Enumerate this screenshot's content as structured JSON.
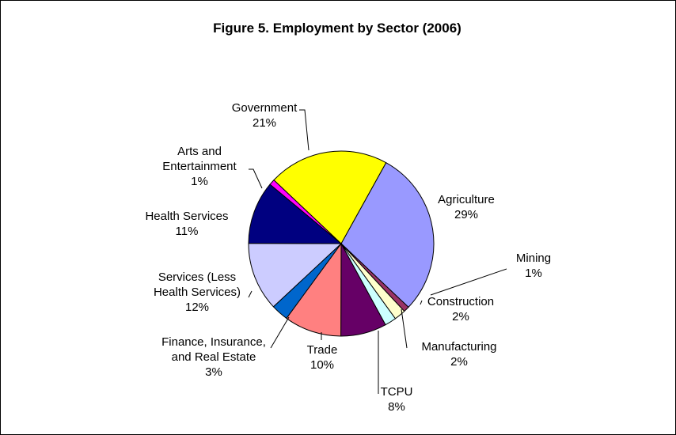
{
  "chart_data": {
    "type": "pie",
    "title": "Figure 5. Employment by Sector (2006)",
    "slices": [
      {
        "label": "Agriculture",
        "value": 29,
        "pct_label": "29%",
        "color": "#9999FF"
      },
      {
        "label": "Mining",
        "value": 1,
        "pct_label": "1%",
        "color": "#993366"
      },
      {
        "label": "Construction",
        "value": 2,
        "pct_label": "2%",
        "color": "#FFFFCC"
      },
      {
        "label": "Manufacturing",
        "value": 2,
        "pct_label": "2%",
        "color": "#CCFFFF"
      },
      {
        "label": "TCPU",
        "value": 8,
        "pct_label": "8%",
        "color": "#660066"
      },
      {
        "label": "Trade",
        "value": 10,
        "pct_label": "10%",
        "color": "#FF8080"
      },
      {
        "label": "Finance, Insurance, and Real Estate",
        "value": 3,
        "pct_label": "3%",
        "color": "#0066CC"
      },
      {
        "label": "Services (Less Health Services)",
        "value": 12,
        "pct_label": "12%",
        "color": "#CCCCFF"
      },
      {
        "label": "Health Services",
        "value": 11,
        "pct_label": "11%",
        "color": "#000080"
      },
      {
        "label": "Arts and Entertainment",
        "value": 1,
        "pct_label": "1%",
        "color": "#FF00FF"
      },
      {
        "label": "Government",
        "value": 21,
        "pct_label": "21%",
        "color": "#FFFF00"
      }
    ],
    "legend": "none"
  }
}
